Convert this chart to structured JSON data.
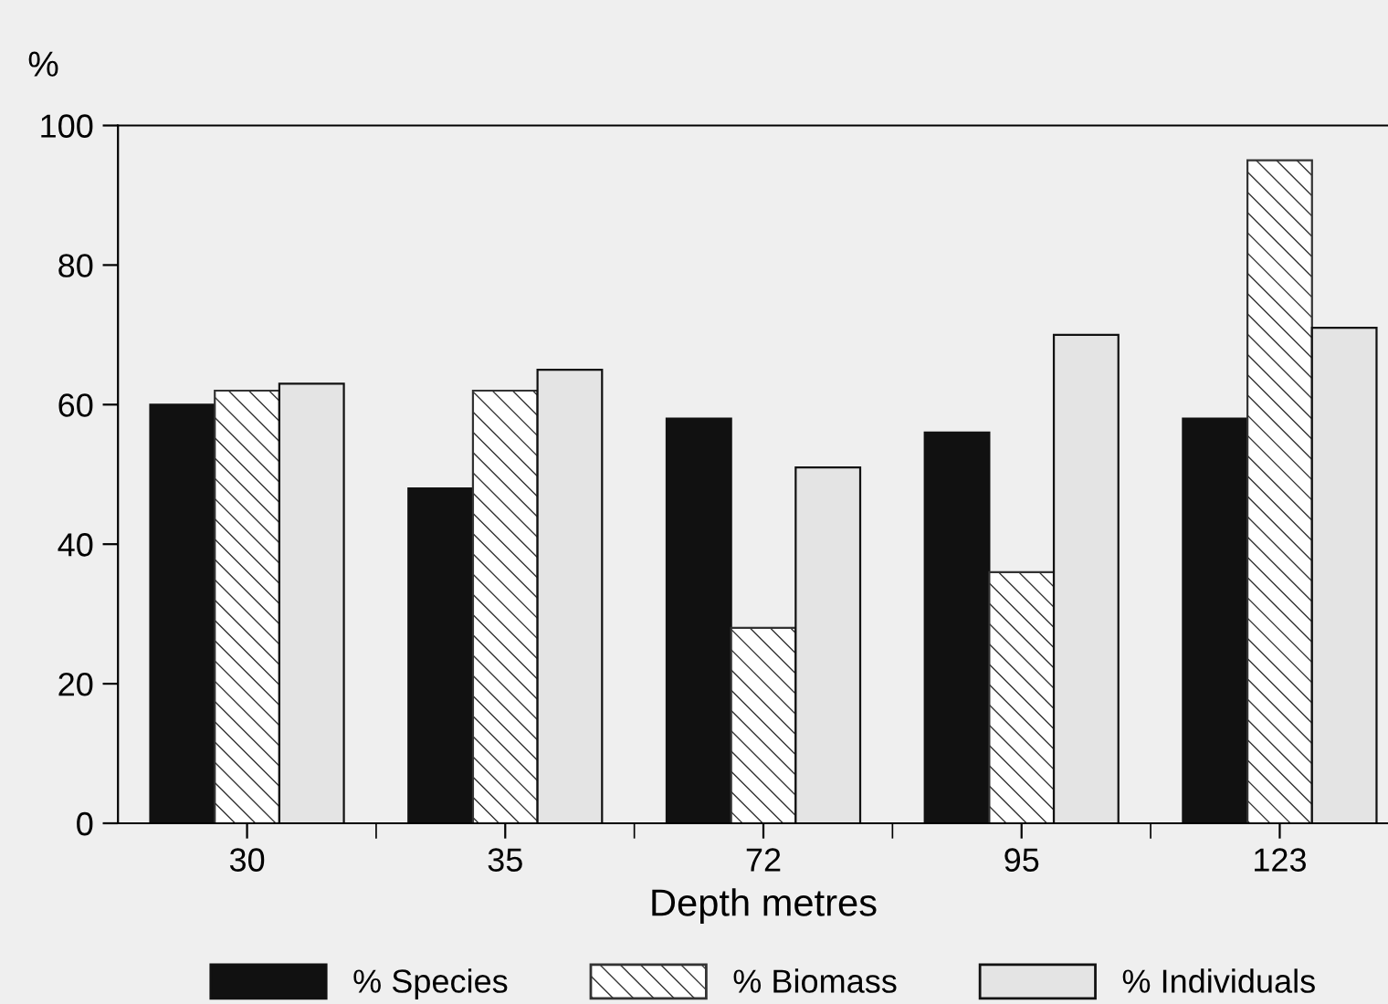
{
  "chart_data": {
    "type": "bar",
    "ylabel": "%",
    "xlabel": "Depth metres",
    "categories": [
      "30",
      "35",
      "72",
      "95",
      "123"
    ],
    "series": [
      {
        "name": "% Species",
        "color": "#111111",
        "values": [
          60,
          48,
          58,
          56,
          58
        ]
      },
      {
        "name": "% Biomass",
        "color": "#333333",
        "values": [
          62,
          62,
          28,
          36,
          95
        ]
      },
      {
        "name": "% Individuals",
        "color": "#e4e4e4",
        "values": [
          63,
          65,
          51,
          70,
          71
        ]
      }
    ],
    "ylim": [
      0,
      100
    ],
    "yticks": [
      0,
      20,
      40,
      60,
      80,
      100
    ],
    "grid": false,
    "legend": "bottom"
  }
}
